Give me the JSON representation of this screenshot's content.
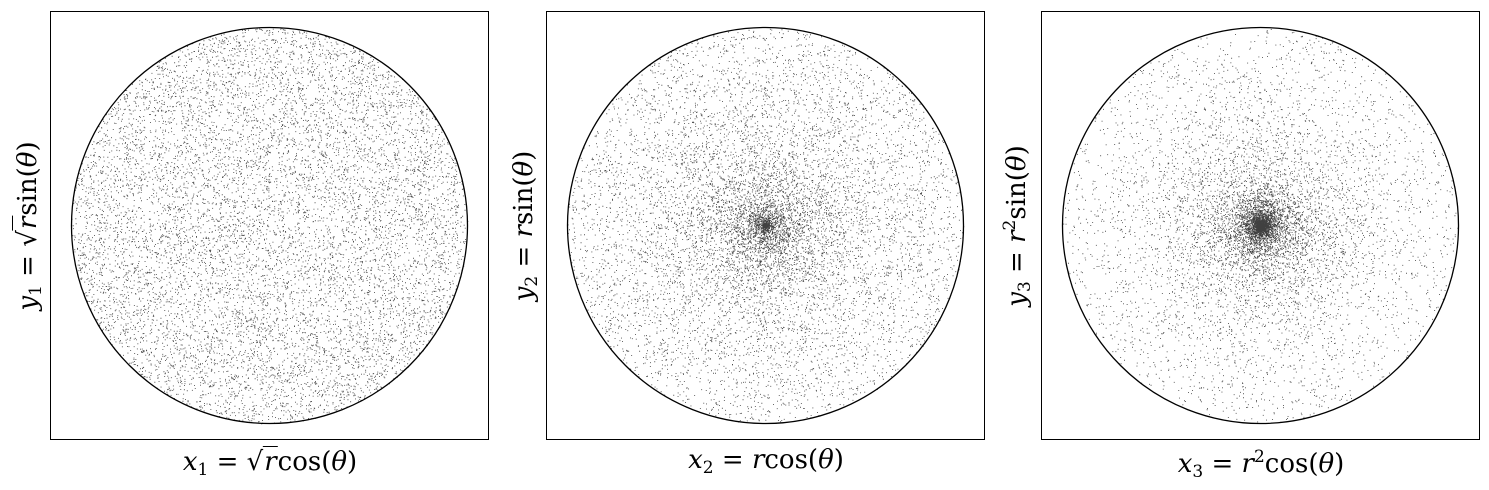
{
  "chart_data": [
    {
      "type": "scatter",
      "distribution": "uniform in unit disk (density flat)",
      "radial_transform": "sqrt(r)",
      "n_points_approx": 10000,
      "xlim": [
        -1.1,
        1.1
      ],
      "ylim": [
        -1.1,
        1.1
      ],
      "ticks": "none",
      "grid": false,
      "boundary": "unit circle",
      "xlabel_text": "x1 = √r cos(θ)",
      "ylabel_text": "y1 = √r sin(θ)",
      "color": "#000000"
    },
    {
      "type": "scatter",
      "distribution": "concentrated near center (density ∝ 1/r)",
      "radial_transform": "r",
      "n_points_approx": 10000,
      "xlim": [
        -1.1,
        1.1
      ],
      "ylim": [
        -1.1,
        1.1
      ],
      "ticks": "none",
      "grid": false,
      "boundary": "unit circle",
      "xlabel_text": "x2 = r cos(θ)",
      "ylabel_text": "y2 = r sin(θ)",
      "color": "#000000"
    },
    {
      "type": "scatter",
      "distribution": "strongly concentrated near center",
      "radial_transform": "r^2",
      "n_points_approx": 10000,
      "xlim": [
        -1.1,
        1.1
      ],
      "ylim": [
        -1.1,
        1.1
      ],
      "ticks": "none",
      "grid": false,
      "boundary": "unit circle",
      "xlabel_text": "x3 = r² cos(θ)",
      "ylabel_text": "y3 = r² sin(θ)",
      "color": "#000000"
    }
  ]
}
